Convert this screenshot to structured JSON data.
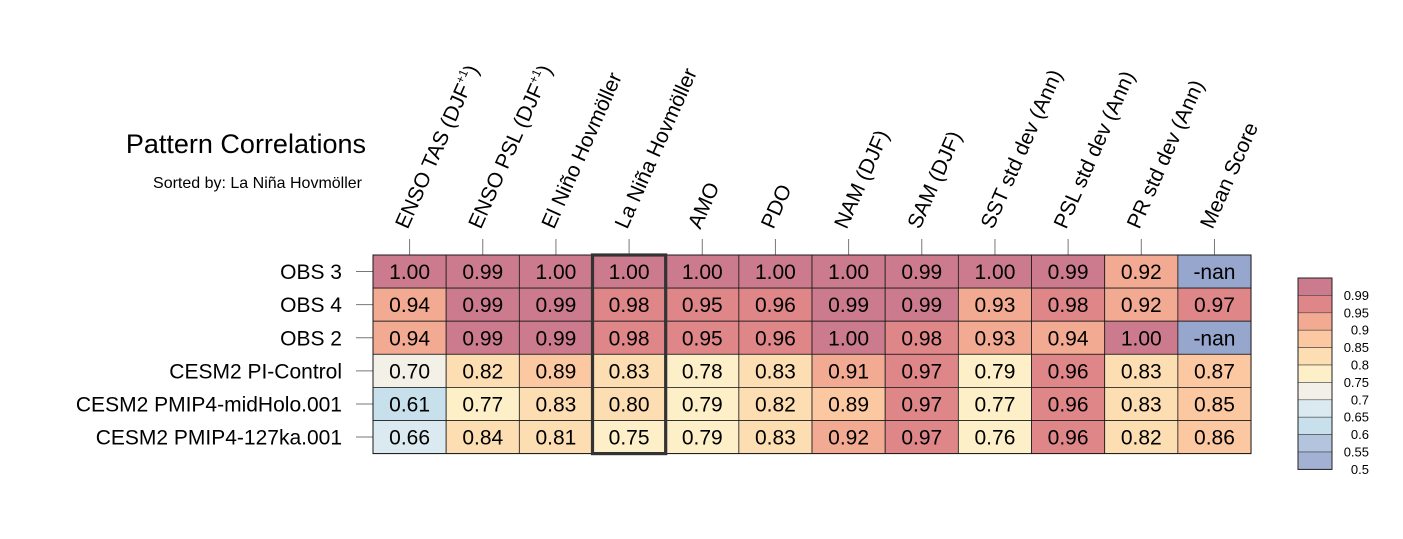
{
  "chart_data": {
    "type": "heatmap",
    "title": "Pattern Correlations",
    "subtitle": "Sorted by: La Niña Hovmöller",
    "columns": [
      {
        "text": "ENSO TAS (DJF",
        "sup": "+1",
        "close": ")"
      },
      {
        "text": "ENSO PSL (DJF",
        "sup": "+1",
        "close": ")"
      },
      {
        "text": "El Niño Hovmöller"
      },
      {
        "text": "La Niña Hovmöller"
      },
      {
        "text": "AMO"
      },
      {
        "text": "PDO"
      },
      {
        "text": "NAM (DJF)"
      },
      {
        "text": "SAM (DJF)"
      },
      {
        "text": "SST std dev (Ann)"
      },
      {
        "text": "PSL std dev (Ann)"
      },
      {
        "text": "PR std dev (Ann)"
      },
      {
        "text": "Mean Score"
      }
    ],
    "rows": [
      "OBS 3",
      "OBS 4",
      "OBS 2",
      "CESM2 PI-Control",
      "CESM2 PMIP4-midHolo.001",
      "CESM2 PMIP4-127ka.001"
    ],
    "values": [
      [
        "1.00",
        "0.99",
        "1.00",
        "1.00",
        "1.00",
        "1.00",
        "1.00",
        "0.99",
        "1.00",
        "0.99",
        "0.92",
        "-nan"
      ],
      [
        "0.94",
        "0.99",
        "0.99",
        "0.98",
        "0.95",
        "0.96",
        "0.99",
        "0.99",
        "0.93",
        "0.98",
        "0.92",
        "0.97"
      ],
      [
        "0.94",
        "0.99",
        "0.99",
        "0.98",
        "0.95",
        "0.96",
        "1.00",
        "0.98",
        "0.93",
        "0.94",
        "1.00",
        "-nan"
      ],
      [
        "0.70",
        "0.82",
        "0.89",
        "0.83",
        "0.78",
        "0.83",
        "0.91",
        "0.97",
        "0.79",
        "0.96",
        "0.83",
        "0.87"
      ],
      [
        "0.61",
        "0.77",
        "0.83",
        "0.80",
        "0.79",
        "0.82",
        "0.89",
        "0.97",
        "0.77",
        "0.96",
        "0.83",
        "0.85"
      ],
      [
        "0.66",
        "0.84",
        "0.81",
        "0.75",
        "0.79",
        "0.83",
        "0.92",
        "0.97",
        "0.76",
        "0.96",
        "0.82",
        "0.86"
      ]
    ],
    "highlighted_column": 3,
    "nan_color": "#97a6cc",
    "colorbar": {
      "labels": [
        "0.99",
        "0.95",
        "0.9",
        "0.85",
        "0.8",
        "0.75",
        "0.7",
        "0.65",
        "0.6",
        "0.55",
        "0.5"
      ],
      "bins": [
        {
          "min": 0.99,
          "color": "#cc7b8e"
        },
        {
          "min": 0.95,
          "color": "#de8688"
        },
        {
          "min": 0.9,
          "color": "#f2aa92"
        },
        {
          "min": 0.85,
          "color": "#fbc8a2"
        },
        {
          "min": 0.8,
          "color": "#fcdeb2"
        },
        {
          "min": 0.75,
          "color": "#fdf0c8"
        },
        {
          "min": 0.7,
          "color": "#f3f0e8"
        },
        {
          "min": 0.65,
          "color": "#dbeaf0"
        },
        {
          "min": 0.6,
          "color": "#c7e0ec"
        },
        {
          "min": 0.55,
          "color": "#b3c5de"
        },
        {
          "min": 0.5,
          "color": "#a3b1d5"
        }
      ]
    }
  }
}
